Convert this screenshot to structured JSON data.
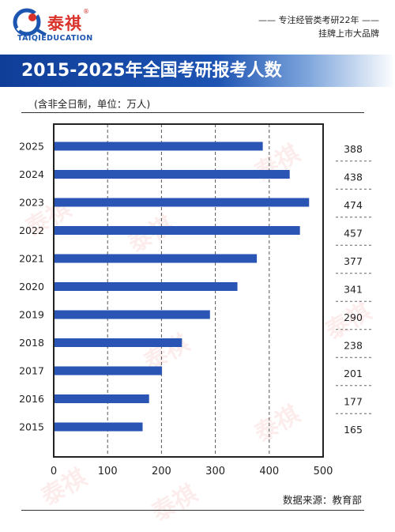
{
  "brand": {
    "name": "泰祺",
    "registered": "®",
    "subtitle": "TAIQIEDUCATION"
  },
  "tagline": {
    "line1": "—— 专注经管类考研22年 ——",
    "line2": "挂牌上市大品牌"
  },
  "header": {
    "title": "2015-2025年全国考研报考人数"
  },
  "subtitle": "(含非全日制，单位：万人)",
  "source": "数据来源：教育部",
  "colors": {
    "bar": "#2a55b4",
    "title_band": "#1d53b2",
    "brand_red": "#d8322a",
    "brand_blue": "#1d56b0"
  },
  "chart_data": {
    "type": "bar",
    "orientation": "horizontal",
    "title": "2015-2025年全国考研报考人数",
    "subtitle": "(含非全日制，单位：万人)",
    "categories": [
      "2025",
      "2024",
      "2023",
      "2022",
      "2021",
      "2020",
      "2019",
      "2018",
      "2017",
      "2016",
      "2015"
    ],
    "values": [
      388,
      438,
      474,
      457,
      377,
      341,
      290,
      238,
      201,
      177,
      165
    ],
    "data_labels": [
      "388",
      "438",
      "474",
      "457",
      "377",
      "341",
      "290",
      "238",
      "201",
      "177",
      "165"
    ],
    "xlim": [
      0,
      500
    ],
    "xticks": [
      0,
      100,
      200,
      300,
      400,
      500
    ],
    "xtick_labels": [
      "0",
      "100",
      "200",
      "300",
      "400",
      "500"
    ],
    "grid": "vertical dashed",
    "legend": "none"
  }
}
